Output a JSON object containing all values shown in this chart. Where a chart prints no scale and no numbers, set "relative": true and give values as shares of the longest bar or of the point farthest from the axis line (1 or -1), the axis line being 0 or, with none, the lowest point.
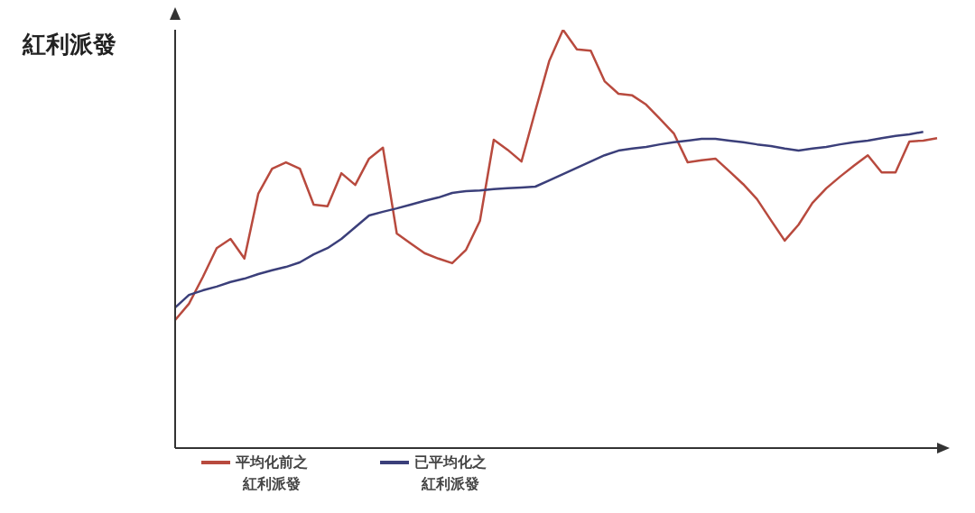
{
  "chart_data": {
    "type": "line",
    "ylabel": "紅利派發",
    "relative": true,
    "tick_labels": false,
    "legend": "bottom left",
    "grid": false,
    "categories": [
      null,
      null,
      null,
      null,
      null,
      null,
      null,
      null,
      null,
      null,
      null,
      null,
      null,
      null,
      null,
      null,
      null,
      null,
      null,
      null,
      null,
      null,
      null,
      null,
      null,
      null,
      null,
      null,
      null,
      null,
      null,
      null,
      null,
      null,
      null,
      null,
      null,
      null,
      null,
      null,
      null,
      null,
      null,
      null,
      null,
      null,
      null,
      null,
      null,
      null,
      null,
      null,
      null,
      null,
      null,
      null
    ],
    "series": [
      {
        "name": "平均化前之紅利派發",
        "color": "#b84a3e",
        "values": [
          0.306,
          0.345,
          0.409,
          0.478,
          0.5,
          0.453,
          0.608,
          0.668,
          0.683,
          0.668,
          0.582,
          0.578,
          0.657,
          0.629,
          0.692,
          0.718,
          0.513,
          0.489,
          0.466,
          0.453,
          0.442,
          0.474,
          0.543,
          0.737,
          0.713,
          0.685,
          0.806,
          0.925,
          1,
          0.953,
          0.95,
          0.877,
          0.847,
          0.843,
          0.821,
          0.787,
          0.752,
          0.683,
          0.688,
          0.692,
          0.662,
          0.631,
          0.595,
          0.545,
          0.496,
          0.534,
          0.586,
          0.621,
          0.649,
          0.675,
          0.7,
          0.659,
          0.659,
          0.733,
          0.735,
          0.741
        ]
      },
      {
        "name": "已平均化之紅利派發",
        "color": "#3b3f7a",
        "values": [
          0.336,
          0.366,
          0.377,
          0.386,
          0.397,
          0.405,
          0.416,
          0.425,
          0.433,
          0.444,
          0.463,
          0.478,
          0.5,
          0.528,
          0.556,
          0.565,
          0.573,
          0.582,
          0.591,
          0.599,
          0.61,
          0.614,
          0.616,
          0.619,
          0.621,
          0.623,
          0.625,
          0.64,
          0.655,
          0.67,
          0.685,
          0.7,
          0.711,
          0.716,
          0.72,
          0.726,
          0.731,
          0.735,
          0.739,
          0.739,
          0.735,
          0.731,
          0.726,
          0.722,
          0.716,
          0.711,
          0.716,
          0.72,
          0.726,
          0.731,
          0.735,
          0.741,
          0.746,
          0.75,
          0.756,
          null
        ]
      }
    ]
  }
}
